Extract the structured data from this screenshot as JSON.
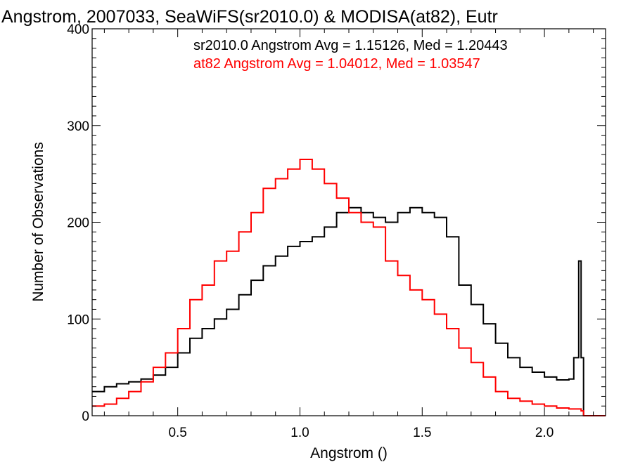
{
  "chart_data": {
    "type": "histogram",
    "title": "Angstrom, 2007033, SeaWiFS(sr2010.0) & MODISA(at82), Eutr",
    "xlabel": "Angstrom ()",
    "ylabel": "Number of Observations",
    "xlim": [
      0.15,
      2.25
    ],
    "ylim": [
      0,
      400
    ],
    "x_ticks": [
      {
        "value": 0.5,
        "label": "0.5"
      },
      {
        "value": 1.0,
        "label": "1.0"
      },
      {
        "value": 1.5,
        "label": "1.5"
      },
      {
        "value": 2.0,
        "label": "2.0"
      }
    ],
    "y_ticks": [
      {
        "value": 0,
        "label": "0"
      },
      {
        "value": 100,
        "label": "100"
      },
      {
        "value": 200,
        "label": "200"
      },
      {
        "value": 300,
        "label": "300"
      },
      {
        "value": 400,
        "label": "400"
      }
    ],
    "grid": false,
    "legend_position": "top-right",
    "series": [
      {
        "name": "sr2010.0",
        "color": "#000000",
        "legend": "sr2010.0 Angstrom Avg = 1.15126, Med = 1.20443",
        "x": [
          0.15,
          0.2,
          0.25,
          0.3,
          0.35,
          0.4,
          0.45,
          0.5,
          0.55,
          0.6,
          0.65,
          0.7,
          0.75,
          0.8,
          0.85,
          0.9,
          0.95,
          1.0,
          1.05,
          1.1,
          1.15,
          1.2,
          1.25,
          1.3,
          1.35,
          1.4,
          1.45,
          1.5,
          1.55,
          1.6,
          1.65,
          1.7,
          1.75,
          1.8,
          1.85,
          1.9,
          1.95,
          2.0,
          2.05,
          2.1,
          2.12,
          2.14,
          2.15,
          2.16,
          2.25
        ],
        "y": [
          25,
          30,
          33,
          35,
          38,
          42,
          50,
          65,
          80,
          90,
          100,
          110,
          125,
          140,
          155,
          165,
          175,
          180,
          185,
          195,
          210,
          215,
          210,
          205,
          200,
          210,
          215,
          210,
          205,
          185,
          135,
          115,
          95,
          75,
          60,
          50,
          45,
          40,
          37,
          38,
          60,
          160,
          60,
          0,
          0
        ]
      },
      {
        "name": "at82",
        "color": "#ff0000",
        "legend": "at82 Angstrom Avg = 1.04012, Med = 1.03547",
        "x": [
          0.15,
          0.2,
          0.25,
          0.3,
          0.35,
          0.4,
          0.45,
          0.5,
          0.55,
          0.6,
          0.65,
          0.7,
          0.75,
          0.8,
          0.85,
          0.9,
          0.95,
          1.0,
          1.05,
          1.1,
          1.15,
          1.2,
          1.25,
          1.3,
          1.35,
          1.4,
          1.45,
          1.5,
          1.55,
          1.6,
          1.65,
          1.7,
          1.75,
          1.8,
          1.85,
          1.9,
          1.95,
          2.0,
          2.05,
          2.1,
          2.15,
          2.16,
          2.25
        ],
        "y": [
          10,
          12,
          18,
          25,
          35,
          50,
          65,
          90,
          120,
          135,
          160,
          170,
          190,
          210,
          235,
          245,
          255,
          265,
          255,
          240,
          225,
          210,
          200,
          195,
          160,
          145,
          130,
          120,
          105,
          90,
          70,
          55,
          40,
          25,
          18,
          15,
          12,
          10,
          8,
          7,
          5,
          0,
          0
        ]
      }
    ]
  }
}
